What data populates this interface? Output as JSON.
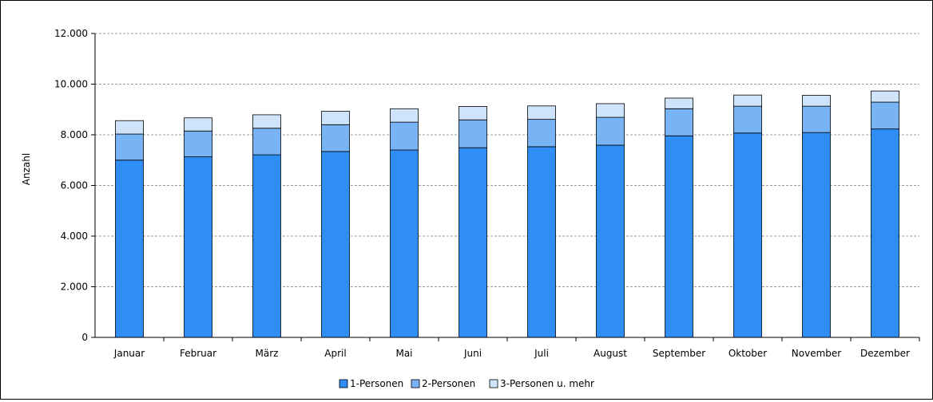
{
  "chart_data": {
    "type": "bar",
    "stacked": true,
    "title": "",
    "xlabel": "",
    "ylabel": "Anzahl",
    "ylim": [
      0,
      12000
    ],
    "yticks": [
      0,
      2000,
      4000,
      6000,
      8000,
      10000,
      12000
    ],
    "ytick_labels": [
      "0",
      "2.000",
      "4.000",
      "6.000",
      "8.000",
      "10.000",
      "12.000"
    ],
    "grid": true,
    "legend_position": "bottom",
    "categories": [
      "Januar",
      "Februar",
      "März",
      "April",
      "Mai",
      "Juni",
      "Juli",
      "August",
      "September",
      "Oktober",
      "November",
      "Dezember"
    ],
    "series": [
      {
        "name": "1-Personen",
        "color": "#2e8ef5",
        "values": [
          7000,
          7130,
          7210,
          7340,
          7400,
          7490,
          7530,
          7590,
          7960,
          8070,
          8090,
          8230
        ]
      },
      {
        "name": "2-Personen",
        "color": "#78b4f5",
        "values": [
          1030,
          1020,
          1050,
          1060,
          1100,
          1100,
          1080,
          1100,
          1070,
          1060,
          1040,
          1060
        ]
      },
      {
        "name": "3-Personen u. mehr",
        "color": "#cfe4fb",
        "values": [
          530,
          520,
          530,
          530,
          530,
          530,
          530,
          540,
          420,
          440,
          430,
          440
        ]
      }
    ]
  }
}
